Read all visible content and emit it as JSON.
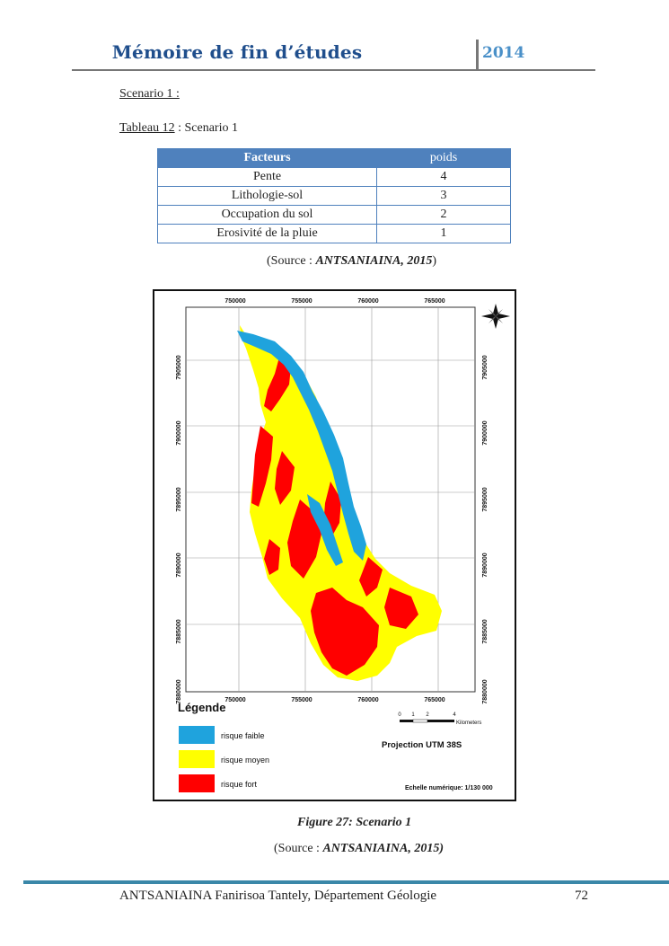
{
  "header": {
    "title": "Mémoire de fin d’études",
    "year": "2014"
  },
  "section_label": "Scenario 1 :",
  "table_caption": {
    "ref": "Tableau 12",
    "text": " : Scenario 1"
  },
  "table": {
    "headers": [
      "Facteurs",
      "poids"
    ],
    "rows": [
      [
        "Pente",
        "4"
      ],
      [
        "Lithologie-sol",
        "3"
      ],
      [
        "Occupation du sol",
        "2"
      ],
      [
        "Erosivité de la pluie",
        "1"
      ]
    ]
  },
  "table_source": {
    "prefix": "(Source : ",
    "author": "ANTSANIAINA, 2015",
    "suffix": ")"
  },
  "map": {
    "x_ticks": [
      "750000",
      "755000",
      "760000",
      "765000"
    ],
    "y_ticks": [
      "7905000",
      "7900000",
      "7895000",
      "7890000",
      "7885000",
      "7880000"
    ],
    "legend_title": "Légende",
    "legend": [
      {
        "label": "risque faible",
        "color": "#1fa3dd"
      },
      {
        "label": "risque moyen",
        "color": "#ffff00"
      },
      {
        "label": "risque fort",
        "color": "#ff0000"
      }
    ],
    "scale_ticks": [
      "0",
      "1",
      "2",
      "4"
    ],
    "scale_unit": "Kilometers",
    "projection": "Projection UTM 38S",
    "scale_numeric": "Echelle numérique: 1/130 000"
  },
  "figure_caption": "Figure 27: Scenario 1",
  "figure_source": {
    "prefix": "(Source : ",
    "author": "ANTSANIAINA, 2015)"
  },
  "footer": {
    "text": "ANTSANIAINA Fanirisoa Tantely, Département Géologie",
    "page": "72"
  }
}
